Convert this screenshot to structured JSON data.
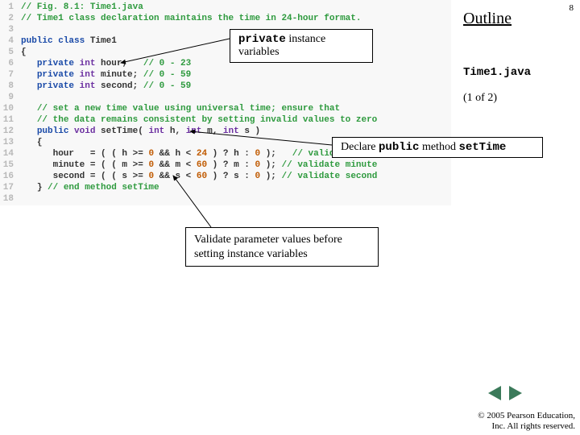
{
  "page_number": "8",
  "outline": {
    "title": "Outline",
    "file": "Time1.java",
    "page_of": "(1 of 2)"
  },
  "callouts": {
    "private_vars": {
      "kw": "private",
      "rest": " instance variables"
    },
    "settime": {
      "pre": "Declare ",
      "kw1": "public",
      "mid": " method ",
      "kw2": "setTime"
    },
    "validate": "Validate parameter values before setting instance variables"
  },
  "code": {
    "line_count": 18,
    "colors": {
      "comment": "#2e9a3e",
      "keyword": "#1a4aa8",
      "type": "#6b2fa0",
      "number": "#c05a00",
      "plain": "#333333",
      "gutter": "#b8b8b8",
      "bg": "#f8f8f8"
    }
  },
  "nav": {
    "prev_color": "#3b7a5a",
    "next_color": "#3b7a5a"
  },
  "copyright": {
    "line1": "© 2005 Pearson Education,",
    "line2": "Inc.  All rights reserved."
  }
}
